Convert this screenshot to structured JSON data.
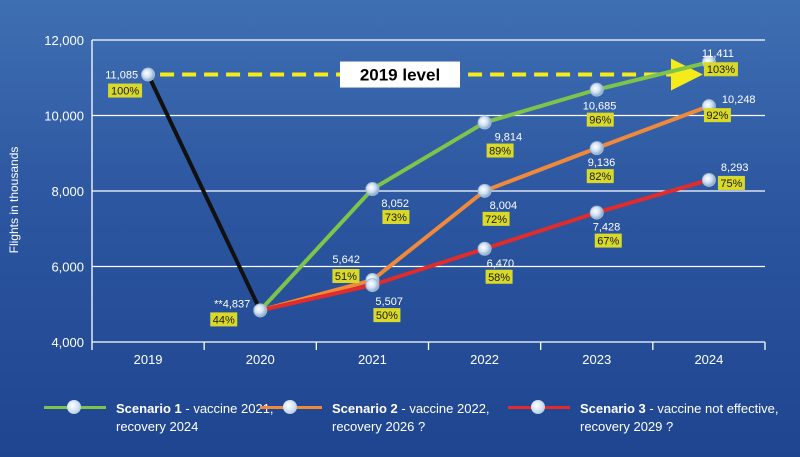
{
  "chart_data": {
    "type": "line",
    "ylabel": "Flights in thousands",
    "categories": [
      "2019",
      "2020",
      "2021",
      "2022",
      "2023",
      "2024"
    ],
    "ylim": [
      4000,
      12000
    ],
    "yticks": [
      "4,000",
      "6,000",
      "8,000",
      "10,000",
      "12,000"
    ],
    "grid": true,
    "colors": {
      "actual": "#111111",
      "scenario1": "#7ec44a",
      "scenario2": "#f08a3a",
      "scenario3": "#e22b2b",
      "reference": "#f5ea1a",
      "percent_bg": "#d9d92a"
    },
    "actual": {
      "points": [
        {
          "x": "2019",
          "value": 11085,
          "label": "11,085",
          "pct": "100%"
        },
        {
          "x": "2020",
          "value": 4837,
          "label": "**4,837",
          "pct": "44%"
        }
      ]
    },
    "series": [
      {
        "name": "Scenario 1",
        "desc": " - vaccine 2021,",
        "desc2": "recovery 2024",
        "values": [
          {
            "x": "2020",
            "value": 4837,
            "label": "",
            "pct": ""
          },
          {
            "x": "2021",
            "value": 8052,
            "label": "8,052",
            "pct": "73%"
          },
          {
            "x": "2022",
            "value": 9814,
            "label": "9,814",
            "pct": "89%"
          },
          {
            "x": "2023",
            "value": 10685,
            "label": "10,685",
            "pct": "96%"
          },
          {
            "x": "2024",
            "value": 11411,
            "label": "11,411",
            "pct": "103%"
          }
        ]
      },
      {
        "name": "Scenario 2",
        "desc": " - vaccine 2022,",
        "desc2": "recovery 2026 ?",
        "values": [
          {
            "x": "2020",
            "value": 4837,
            "label": "",
            "pct": ""
          },
          {
            "x": "2021",
            "value": 5642,
            "label": "5,642",
            "pct": "51%"
          },
          {
            "x": "2022",
            "value": 8004,
            "label": "8,004",
            "pct": "72%"
          },
          {
            "x": "2023",
            "value": 9136,
            "label": "9,136",
            "pct": "82%"
          },
          {
            "x": "2024",
            "value": 10248,
            "label": "10,248",
            "pct": "92%"
          }
        ]
      },
      {
        "name": "Scenario 3",
        "desc": " - vaccine not effective,",
        "desc2": "recovery 2029 ?",
        "values": [
          {
            "x": "2020",
            "value": 4837,
            "label": "",
            "pct": ""
          },
          {
            "x": "2021",
            "value": 5507,
            "label": "5,507",
            "pct": "50%"
          },
          {
            "x": "2022",
            "value": 6470,
            "label": "6,470",
            "pct": "58%"
          },
          {
            "x": "2023",
            "value": 7428,
            "label": "7,428",
            "pct": "67%"
          },
          {
            "x": "2024",
            "value": 8293,
            "label": "8,293",
            "pct": "75%"
          }
        ]
      }
    ],
    "reference": {
      "label": "2019 level",
      "value": 11085
    }
  }
}
